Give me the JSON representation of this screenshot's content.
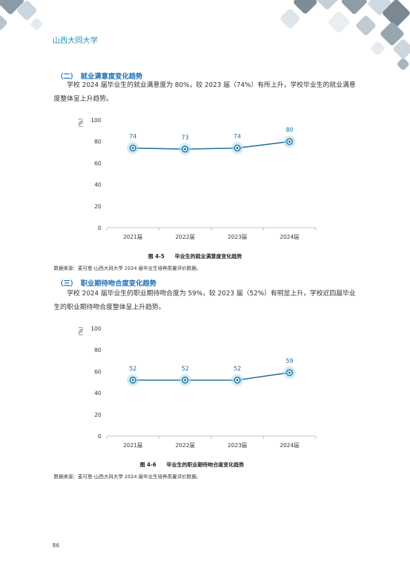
{
  "header": {
    "logo_text": "山西大同大学"
  },
  "section1": {
    "heading": "（二）　就业满意度变化趋势",
    "paragraph": "学校 2024 届毕业生的就业满意度为 80%，较 2023 届（74%）有所上升，学校毕业生的就业满意度整体呈上升趋势。",
    "caption": "图 4-5　　毕业生的就业满意度变化趋势",
    "source": "数据来源：麦可思-山西大同大学 2024 届毕业生培养质量评价数据。"
  },
  "section2": {
    "heading": "（三）　职业期待吻合度变化趋势",
    "paragraph": "学校 2024 届毕业生的职业期待吻合度为 59%，较 2023 届（52%）有明显上升，学校近四届毕业生的职业期待吻合度整体呈上升趋势。",
    "caption": "图 4-6　　毕业生的职业期待吻合度变化趋势",
    "source": "数据来源：麦可思-山西大同大学 2024 届毕业生培养质量评价数据。"
  },
  "footer": {
    "page_number": "86"
  },
  "colors": {
    "accent": "#1f6fb2",
    "line": "#1c6e9c",
    "marker_glow": "#a9d8ee"
  },
  "chart_data": [
    {
      "type": "line",
      "categories": [
        "2021届",
        "2022届",
        "2023届",
        "2024届"
      ],
      "series": [
        {
          "values": [
            74,
            73,
            74,
            80
          ]
        }
      ],
      "ylabel": "（%）",
      "ylim": [
        0,
        100
      ],
      "yticks": [
        0,
        20,
        40,
        60,
        80,
        100
      ],
      "data_labels": true
    },
    {
      "type": "line",
      "categories": [
        "2021届",
        "2022届",
        "2023届",
        "2024届"
      ],
      "series": [
        {
          "values": [
            52,
            52,
            52,
            59
          ]
        }
      ],
      "ylabel": "（%）",
      "ylim": [
        0,
        100
      ],
      "yticks": [
        0,
        20,
        40,
        60,
        80,
        100
      ],
      "data_labels": true
    }
  ]
}
